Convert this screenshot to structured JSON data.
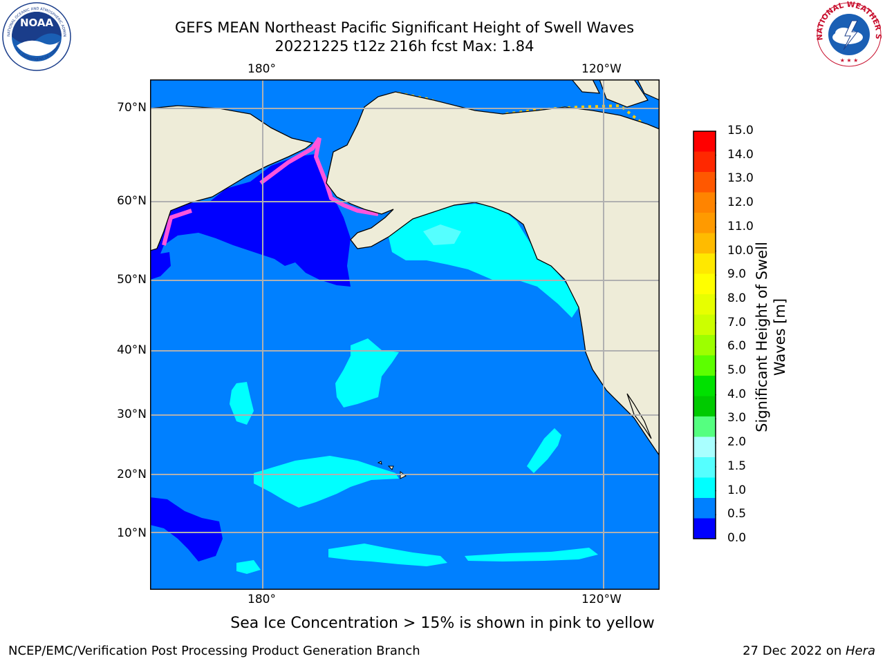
{
  "header": {
    "title_line1": "GEFS MEAN Northeast Pacific Significant Height of Swell Waves",
    "title_line2": "20221225 t12z 216h fcst   Max: 1.84"
  },
  "logos": {
    "left": {
      "text": "NOAA",
      "ring_top": "NATIONAL OCEANIC AND ATMOSPHERIC ADMINISTRATION",
      "ring_bottom": "U.S. DEPARTMENT OF COMMERCE"
    },
    "right": {
      "ring": "NATIONAL WEATHER SERVICE"
    }
  },
  "map": {
    "lon_labels_top": [
      "180°",
      "120°W"
    ],
    "lon_labels_bottom": [
      "180°",
      "120°W"
    ],
    "lat_labels": [
      "70°N",
      "60°N",
      "50°N",
      "40°N",
      "30°N",
      "20°N",
      "10°N"
    ],
    "ocean_color": "#0080ff",
    "land_color": "#eeecd8",
    "grid": true
  },
  "colorbar": {
    "label": "Significant Height of Swell Waves [m]",
    "ticks": [
      "15.0",
      "14.0",
      "13.0",
      "12.0",
      "11.0",
      "10.0",
      "9.0",
      "8.0",
      "7.0",
      "6.0",
      "5.0",
      "4.0",
      "3.0",
      "2.0",
      "1.5",
      "1.0",
      "0.5",
      "0.0"
    ],
    "colors_top_to_bottom": [
      "#ff0000",
      "#ff2800",
      "#ff5800",
      "#ff8400",
      "#ff9a00",
      "#ffbb00",
      "#ffe800",
      "#ffff00",
      "#e7ff00",
      "#ccff00",
      "#9dff00",
      "#5cff00",
      "#00e100",
      "#00ca00",
      "#55ff80",
      "#a9ffff",
      "#55ffff",
      "#00ffff",
      "#0080ff",
      "#0000ff"
    ]
  },
  "footnote": "Sea Ice Concentration > 15% is shown in pink to yellow",
  "credit": "NCEP/EMC/Verification Post Processing Product Generation Branch",
  "datestamp": {
    "date": "27 Dec 2022 on ",
    "machine": "Hera"
  }
}
